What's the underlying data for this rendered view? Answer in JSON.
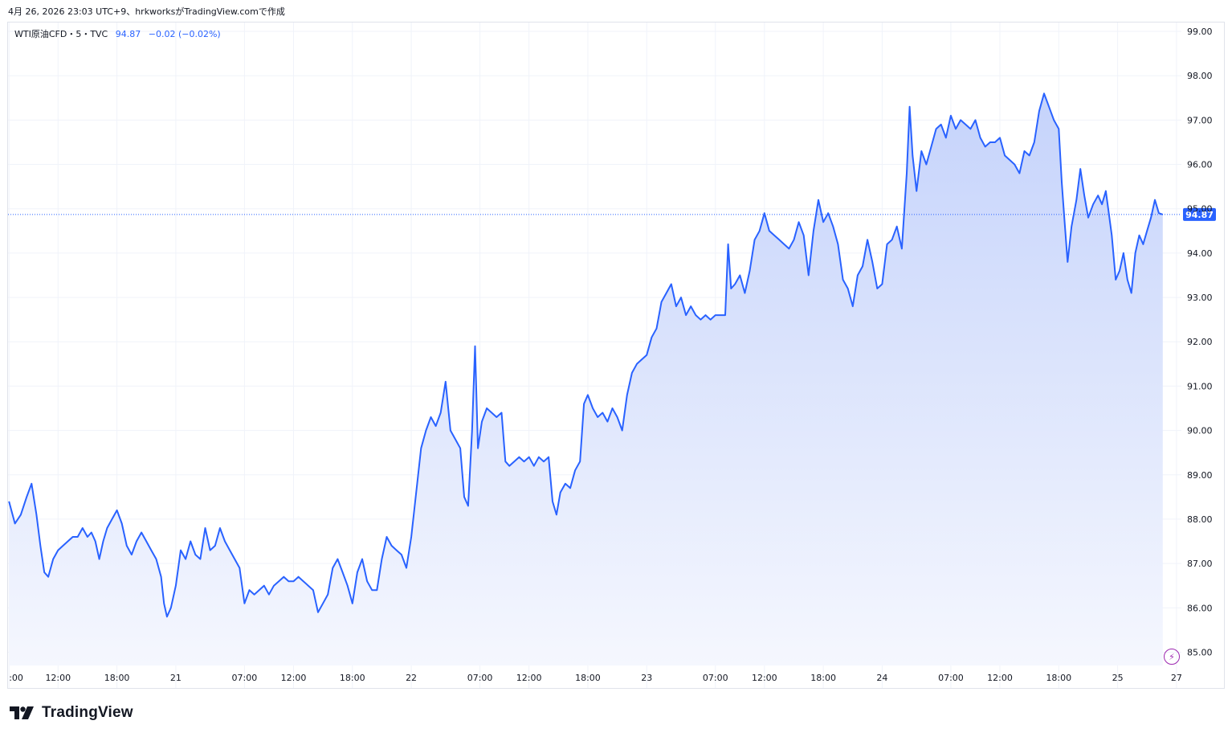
{
  "header": {
    "text": "4月 26, 2026 23:03 UTC+9、hrkworksがTradingView.comで作成"
  },
  "legend": {
    "symbol": "WTI原油CFD・5・TVC",
    "last": "94.87",
    "change": "−0.02 (−0.02%)"
  },
  "footer": {
    "brand": "TradingView"
  },
  "colors": {
    "line": "#2962ff",
    "fill_top": "#c5d3fb",
    "fill_bottom": "#f5f7fe",
    "grid": "#f0f3fa",
    "price_tag": "#2962ff",
    "bolt": "#9c27b0"
  },
  "icons": {
    "logo": "tradingview-logo-icon",
    "flash": "lightning-icon"
  },
  "chart_data": {
    "type": "area",
    "symbol": "WTI原油CFD",
    "interval": "5",
    "source": "TVC",
    "last_price": 94.87,
    "last_price_label": "94.87",
    "ylim": [
      84.7,
      99.2
    ],
    "y_ticks": [
      85,
      86,
      87,
      88,
      89,
      90,
      91,
      92,
      93,
      94,
      95,
      96,
      97,
      98,
      99
    ],
    "y_tick_labels": [
      "85.00",
      "86.00",
      "87.00",
      "88.00",
      "89.00",
      "90.00",
      "91.00",
      "92.00",
      "93.00",
      "94.00",
      "95.00",
      "96.00",
      "97.00",
      "98.00",
      "99.00"
    ],
    "x_ticks": [
      {
        "label": ":00",
        "t": 0.0
      },
      {
        "label": "12:00",
        "t": 5.0
      },
      {
        "label": "18:00",
        "t": 11.0
      },
      {
        "label": "21",
        "t": 17.0
      },
      {
        "label": "07:00",
        "t": 24.0
      },
      {
        "label": "12:00",
        "t": 29.0
      },
      {
        "label": "18:00",
        "t": 35.0
      },
      {
        "label": "22",
        "t": 41.0
      },
      {
        "label": "07:00",
        "t": 48.0
      },
      {
        "label": "12:00",
        "t": 53.0
      },
      {
        "label": "18:00",
        "t": 59.0
      },
      {
        "label": "23",
        "t": 65.0
      },
      {
        "label": "07:00",
        "t": 72.0
      },
      {
        "label": "12:00",
        "t": 77.0
      },
      {
        "label": "18:00",
        "t": 83.0
      },
      {
        "label": "24",
        "t": 89.0
      },
      {
        "label": "07:00",
        "t": 96.0
      },
      {
        "label": "12:00",
        "t": 101.0
      },
      {
        "label": "18:00",
        "t": 107.0
      },
      {
        "label": "25",
        "t": 113.0
      },
      {
        "label": "27",
        "t": 119.0
      }
    ],
    "xlim": [
      -0.1,
      119.5
    ],
    "series": [
      {
        "values": [
          [
            0.0,
            88.4
          ],
          [
            0.6,
            87.9
          ],
          [
            1.2,
            88.1
          ],
          [
            1.8,
            88.5
          ],
          [
            2.3,
            88.8
          ],
          [
            2.8,
            88.1
          ],
          [
            3.2,
            87.4
          ],
          [
            3.6,
            86.8
          ],
          [
            4.0,
            86.7
          ],
          [
            4.5,
            87.1
          ],
          [
            5.0,
            87.3
          ],
          [
            5.5,
            87.4
          ],
          [
            6.0,
            87.5
          ],
          [
            6.5,
            87.6
          ],
          [
            7.0,
            87.6
          ],
          [
            7.5,
            87.8
          ],
          [
            8.0,
            87.6
          ],
          [
            8.4,
            87.7
          ],
          [
            8.8,
            87.5
          ],
          [
            9.2,
            87.1
          ],
          [
            9.6,
            87.5
          ],
          [
            10.0,
            87.8
          ],
          [
            10.5,
            88.0
          ],
          [
            11.0,
            88.2
          ],
          [
            11.5,
            87.9
          ],
          [
            12.0,
            87.4
          ],
          [
            12.5,
            87.2
          ],
          [
            13.0,
            87.5
          ],
          [
            13.5,
            87.7
          ],
          [
            14.0,
            87.5
          ],
          [
            14.5,
            87.3
          ],
          [
            15.0,
            87.1
          ],
          [
            15.5,
            86.7
          ],
          [
            15.8,
            86.1
          ],
          [
            16.1,
            85.8
          ],
          [
            16.5,
            86.0
          ],
          [
            17.0,
            86.5
          ],
          [
            17.5,
            87.3
          ],
          [
            18.0,
            87.1
          ],
          [
            18.5,
            87.5
          ],
          [
            19.0,
            87.2
          ],
          [
            19.5,
            87.1
          ],
          [
            20.0,
            87.8
          ],
          [
            20.5,
            87.3
          ],
          [
            21.0,
            87.4
          ],
          [
            21.5,
            87.8
          ],
          [
            22.0,
            87.5
          ],
          [
            22.5,
            87.3
          ],
          [
            23.0,
            87.1
          ],
          [
            23.5,
            86.9
          ],
          [
            24.0,
            86.1
          ],
          [
            24.5,
            86.4
          ],
          [
            25.0,
            86.3
          ],
          [
            25.5,
            86.4
          ],
          [
            26.0,
            86.5
          ],
          [
            26.5,
            86.3
          ],
          [
            27.0,
            86.5
          ],
          [
            27.5,
            86.6
          ],
          [
            28.0,
            86.7
          ],
          [
            28.5,
            86.6
          ],
          [
            29.0,
            86.6
          ],
          [
            29.5,
            86.7
          ],
          [
            30.0,
            86.6
          ],
          [
            30.5,
            86.5
          ],
          [
            31.0,
            86.4
          ],
          [
            31.5,
            85.9
          ],
          [
            32.0,
            86.1
          ],
          [
            32.5,
            86.3
          ],
          [
            33.0,
            86.9
          ],
          [
            33.5,
            87.1
          ],
          [
            34.0,
            86.8
          ],
          [
            34.5,
            86.5
          ],
          [
            35.0,
            86.1
          ],
          [
            35.5,
            86.8
          ],
          [
            36.0,
            87.1
          ],
          [
            36.5,
            86.6
          ],
          [
            37.0,
            86.4
          ],
          [
            37.5,
            86.4
          ],
          [
            38.0,
            87.1
          ],
          [
            38.5,
            87.6
          ],
          [
            39.0,
            87.4
          ],
          [
            39.5,
            87.3
          ],
          [
            40.0,
            87.2
          ],
          [
            40.5,
            86.9
          ],
          [
            41.0,
            87.6
          ],
          [
            41.5,
            88.6
          ],
          [
            42.0,
            89.6
          ],
          [
            42.5,
            90.0
          ],
          [
            43.0,
            90.3
          ],
          [
            43.5,
            90.1
          ],
          [
            44.0,
            90.4
          ],
          [
            44.5,
            91.1
          ],
          [
            45.0,
            90.0
          ],
          [
            45.5,
            89.8
          ],
          [
            46.0,
            89.6
          ],
          [
            46.4,
            88.5
          ],
          [
            46.8,
            88.3
          ],
          [
            47.2,
            90.0
          ],
          [
            47.5,
            91.9
          ],
          [
            47.8,
            89.6
          ],
          [
            48.2,
            90.2
          ],
          [
            48.7,
            90.5
          ],
          [
            49.2,
            90.4
          ],
          [
            49.7,
            90.3
          ],
          [
            50.2,
            90.4
          ],
          [
            50.6,
            89.3
          ],
          [
            51.0,
            89.2
          ],
          [
            51.5,
            89.3
          ],
          [
            52.0,
            89.4
          ],
          [
            52.5,
            89.3
          ],
          [
            53.0,
            89.4
          ],
          [
            53.5,
            89.2
          ],
          [
            54.0,
            89.4
          ],
          [
            54.5,
            89.3
          ],
          [
            55.0,
            89.4
          ],
          [
            55.4,
            88.4
          ],
          [
            55.8,
            88.1
          ],
          [
            56.2,
            88.6
          ],
          [
            56.7,
            88.8
          ],
          [
            57.2,
            88.7
          ],
          [
            57.7,
            89.1
          ],
          [
            58.2,
            89.3
          ],
          [
            58.6,
            90.6
          ],
          [
            59.0,
            90.8
          ],
          [
            59.5,
            90.5
          ],
          [
            60.0,
            90.3
          ],
          [
            60.5,
            90.4
          ],
          [
            61.0,
            90.2
          ],
          [
            61.5,
            90.5
          ],
          [
            62.0,
            90.3
          ],
          [
            62.5,
            90.0
          ],
          [
            63.0,
            90.8
          ],
          [
            63.5,
            91.3
          ],
          [
            64.0,
            91.5
          ],
          [
            64.5,
            91.6
          ],
          [
            65.0,
            91.7
          ],
          [
            65.5,
            92.1
          ],
          [
            66.0,
            92.3
          ],
          [
            66.5,
            92.9
          ],
          [
            67.0,
            93.1
          ],
          [
            67.5,
            93.3
          ],
          [
            68.0,
            92.8
          ],
          [
            68.5,
            93.0
          ],
          [
            69.0,
            92.6
          ],
          [
            69.5,
            92.8
          ],
          [
            70.0,
            92.6
          ],
          [
            70.5,
            92.5
          ],
          [
            71.0,
            92.6
          ],
          [
            71.5,
            92.5
          ],
          [
            72.0,
            92.6
          ],
          [
            72.5,
            92.6
          ],
          [
            73.0,
            92.6
          ],
          [
            73.3,
            94.2
          ],
          [
            73.6,
            93.2
          ],
          [
            74.0,
            93.3
          ],
          [
            74.5,
            93.5
          ],
          [
            75.0,
            93.1
          ],
          [
            75.5,
            93.6
          ],
          [
            76.0,
            94.3
          ],
          [
            76.5,
            94.5
          ],
          [
            77.0,
            94.9
          ],
          [
            77.5,
            94.5
          ],
          [
            78.0,
            94.4
          ],
          [
            78.5,
            94.3
          ],
          [
            79.0,
            94.2
          ],
          [
            79.5,
            94.1
          ],
          [
            80.0,
            94.3
          ],
          [
            80.5,
            94.7
          ],
          [
            81.0,
            94.4
          ],
          [
            81.5,
            93.5
          ],
          [
            82.0,
            94.5
          ],
          [
            82.5,
            95.2
          ],
          [
            83.0,
            94.7
          ],
          [
            83.5,
            94.9
          ],
          [
            84.0,
            94.6
          ],
          [
            84.5,
            94.2
          ],
          [
            85.0,
            93.4
          ],
          [
            85.5,
            93.2
          ],
          [
            86.0,
            92.8
          ],
          [
            86.5,
            93.5
          ],
          [
            87.0,
            93.7
          ],
          [
            87.5,
            94.3
          ],
          [
            88.0,
            93.8
          ],
          [
            88.5,
            93.2
          ],
          [
            89.0,
            93.3
          ],
          [
            89.5,
            94.2
          ],
          [
            90.0,
            94.3
          ],
          [
            90.5,
            94.6
          ],
          [
            91.0,
            94.1
          ],
          [
            91.5,
            95.8
          ],
          [
            91.8,
            97.3
          ],
          [
            92.1,
            96.2
          ],
          [
            92.5,
            95.4
          ],
          [
            93.0,
            96.3
          ],
          [
            93.5,
            96.0
          ],
          [
            94.0,
            96.4
          ],
          [
            94.5,
            96.8
          ],
          [
            95.0,
            96.9
          ],
          [
            95.5,
            96.6
          ],
          [
            96.0,
            97.1
          ],
          [
            96.5,
            96.8
          ],
          [
            97.0,
            97.0
          ],
          [
            97.5,
            96.9
          ],
          [
            98.0,
            96.8
          ],
          [
            98.5,
            97.0
          ],
          [
            99.0,
            96.6
          ],
          [
            99.5,
            96.4
          ],
          [
            100.0,
            96.5
          ],
          [
            100.5,
            96.5
          ],
          [
            101.0,
            96.6
          ],
          [
            101.5,
            96.2
          ],
          [
            102.0,
            96.1
          ],
          [
            102.5,
            96.0
          ],
          [
            103.0,
            95.8
          ],
          [
            103.5,
            96.3
          ],
          [
            104.0,
            96.2
          ],
          [
            104.5,
            96.5
          ],
          [
            105.0,
            97.2
          ],
          [
            105.5,
            97.6
          ],
          [
            106.0,
            97.3
          ],
          [
            106.5,
            97.0
          ],
          [
            107.0,
            96.8
          ],
          [
            107.3,
            95.6
          ],
          [
            107.6,
            94.7
          ],
          [
            107.9,
            93.8
          ],
          [
            108.3,
            94.6
          ],
          [
            108.8,
            95.2
          ],
          [
            109.2,
            95.9
          ],
          [
            109.6,
            95.3
          ],
          [
            110.0,
            94.8
          ],
          [
            110.5,
            95.1
          ],
          [
            111.0,
            95.3
          ],
          [
            111.4,
            95.1
          ],
          [
            111.8,
            95.4
          ],
          [
            112.1,
            94.9
          ],
          [
            112.4,
            94.4
          ],
          [
            112.8,
            93.4
          ],
          [
            113.2,
            93.6
          ],
          [
            113.6,
            94.0
          ],
          [
            114.0,
            93.4
          ],
          [
            114.4,
            93.1
          ],
          [
            114.8,
            94.0
          ],
          [
            115.2,
            94.4
          ],
          [
            115.6,
            94.2
          ],
          [
            116.0,
            94.5
          ],
          [
            116.4,
            94.8
          ],
          [
            116.8,
            95.2
          ],
          [
            117.2,
            94.9
          ],
          [
            117.6,
            94.87
          ]
        ]
      }
    ]
  }
}
